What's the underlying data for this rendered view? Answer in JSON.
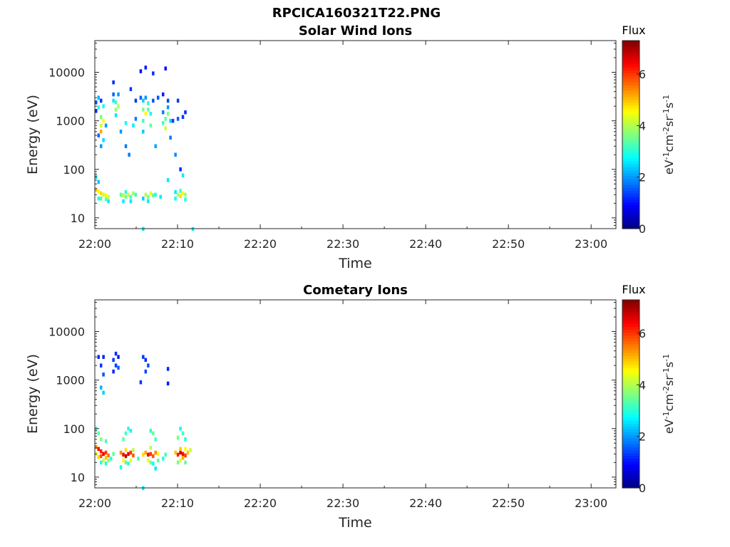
{
  "figure_title": "RPCICA160321T22.PNG",
  "chart_data": [
    {
      "type": "heatmap",
      "title": "Solar Wind Ions",
      "xlabel": "Time",
      "ylabel": "Energy (eV)",
      "x_ticks": [
        "22:00",
        "22:10",
        "22:20",
        "22:30",
        "22:40",
        "22:50",
        "23:00"
      ],
      "xlim_minutes": [
        0,
        63
      ],
      "y_ticks": [
        10,
        100,
        1000,
        10000
      ],
      "y_tick_labels": [
        "10",
        "100",
        "1000",
        "10000"
      ],
      "yscale": "log",
      "ylim": [
        6,
        45000
      ],
      "colorbar": {
        "title": "Flux",
        "label": "eV-1cm-2sr-1s-1",
        "ticks": [
          0,
          2,
          4,
          6
        ],
        "tick_labels": [
          "0",
          "2",
          "4",
          "6"
        ],
        "range": [
          0,
          7.3
        ],
        "colormap": "jet"
      },
      "cells": [
        [
          0.0,
          2400,
          1.5
        ],
        [
          0.0,
          1600,
          1.2
        ],
        [
          0.3,
          3000,
          2.2
        ],
        [
          0.3,
          1900,
          3.0
        ],
        [
          0.6,
          1200,
          3.6
        ],
        [
          0.6,
          800,
          4.2
        ],
        [
          0.6,
          600,
          5.2
        ],
        [
          0.9,
          1000,
          4.6
        ],
        [
          0.9,
          2000,
          2.8
        ],
        [
          0.9,
          400,
          2.5
        ],
        [
          0.6,
          300,
          2.0
        ],
        [
          0.3,
          500,
          1.6
        ],
        [
          1.2,
          800,
          2.0
        ],
        [
          0.6,
          2600,
          1.3
        ],
        [
          2.1,
          2600,
          2.6
        ],
        [
          2.4,
          2400,
          3.2
        ],
        [
          2.4,
          1700,
          3.8
        ],
        [
          2.7,
          2000,
          4.0
        ],
        [
          2.7,
          3500,
          2.0
        ],
        [
          2.1,
          3500,
          1.6
        ],
        [
          2.4,
          1300,
          2.6
        ],
        [
          2.1,
          6200,
          1.2
        ],
        [
          3.0,
          600,
          2.0
        ],
        [
          3.6,
          900,
          2.8
        ],
        [
          3.6,
          300,
          1.8
        ],
        [
          4.0,
          200,
          1.8
        ],
        [
          4.5,
          800,
          2.6
        ],
        [
          4.8,
          1100,
          1.8
        ],
        [
          4.8,
          2600,
          1.3
        ],
        [
          5.4,
          3000,
          1.6
        ],
        [
          5.7,
          2600,
          2.4
        ],
        [
          5.7,
          1700,
          3.6
        ],
        [
          6.0,
          1400,
          4.6
        ],
        [
          6.3,
          1700,
          3.4
        ],
        [
          6.0,
          3000,
          2.0
        ],
        [
          6.3,
          2300,
          3.0
        ],
        [
          5.7,
          1000,
          3.2
        ],
        [
          5.7,
          600,
          2.4
        ],
        [
          6.6,
          800,
          3.4
        ],
        [
          6.6,
          1400,
          2.8
        ],
        [
          6.9,
          2600,
          1.5
        ],
        [
          5.4,
          10500,
          1.0
        ],
        [
          6.0,
          12500,
          1.1
        ],
        [
          6.9,
          9500,
          1.2
        ],
        [
          4.2,
          4500,
          1.3
        ],
        [
          7.5,
          3000,
          1.5
        ],
        [
          8.1,
          900,
          3.2
        ],
        [
          8.4,
          700,
          4.2
        ],
        [
          8.7,
          1400,
          3.6
        ],
        [
          8.7,
          1900,
          2.0
        ],
        [
          8.4,
          1100,
          3.4
        ],
        [
          8.1,
          1500,
          1.8
        ],
        [
          9.0,
          1000,
          2.4
        ],
        [
          8.7,
          2600,
          1.4
        ],
        [
          9.3,
          1000,
          1.4
        ],
        [
          9.9,
          1100,
          1.6
        ],
        [
          9.9,
          2600,
          1.3
        ],
        [
          8.4,
          12000,
          1.0
        ],
        [
          8.1,
          3500,
          1.1
        ],
        [
          9.0,
          450,
          1.8
        ],
        [
          9.6,
          200,
          1.9
        ],
        [
          7.2,
          300,
          2.1
        ],
        [
          8.7,
          60,
          2.6
        ],
        [
          10.5,
          1200,
          1.3
        ],
        [
          10.8,
          1500,
          1.2
        ],
        [
          10.5,
          75,
          2.6
        ],
        [
          10.2,
          100,
          1.2
        ],
        [
          0.0,
          70,
          2.6
        ],
        [
          0.3,
          55,
          2.3
        ],
        [
          0.0,
          38,
          5.0
        ],
        [
          0.3,
          35,
          4.6
        ],
        [
          0.6,
          32,
          4.8
        ],
        [
          0.9,
          30,
          4.2
        ],
        [
          1.2,
          29,
          4.6
        ],
        [
          1.5,
          27,
          4.2
        ],
        [
          0.6,
          25,
          3.2
        ],
        [
          1.2,
          24,
          3.4
        ],
        [
          0.3,
          25,
          3.0
        ],
        [
          1.5,
          22,
          2.6
        ],
        [
          3.0,
          30,
          3.4
        ],
        [
          3.3,
          29,
          4.0
        ],
        [
          3.6,
          27,
          3.6
        ],
        [
          3.9,
          30,
          4.2
        ],
        [
          4.2,
          27,
          3.2
        ],
        [
          4.5,
          32,
          3.8
        ],
        [
          3.3,
          22,
          2.6
        ],
        [
          4.2,
          22,
          2.6
        ],
        [
          3.6,
          34,
          3.0
        ],
        [
          4.8,
          30,
          3.2
        ],
        [
          6.0,
          30,
          4.0
        ],
        [
          6.3,
          27,
          3.6
        ],
        [
          6.6,
          32,
          4.4
        ],
        [
          6.9,
          29,
          3.4
        ],
        [
          7.2,
          30,
          3.0
        ],
        [
          6.3,
          22,
          2.6
        ],
        [
          5.7,
          25,
          2.4
        ],
        [
          7.8,
          27,
          2.6
        ],
        [
          9.9,
          30,
          4.0
        ],
        [
          10.2,
          28,
          4.8
        ],
        [
          10.5,
          32,
          4.4
        ],
        [
          10.8,
          30,
          3.8
        ],
        [
          10.2,
          36,
          3.2
        ],
        [
          9.6,
          34,
          2.6
        ],
        [
          10.8,
          24,
          3.0
        ],
        [
          9.6,
          25,
          2.8
        ],
        [
          5.7,
          5.9,
          2.6
        ],
        [
          11.7,
          5.9,
          2.6
        ]
      ]
    },
    {
      "type": "heatmap",
      "title": "Cometary Ions",
      "xlabel": "Time",
      "ylabel": "Energy (eV)",
      "x_ticks": [
        "22:00",
        "22:10",
        "22:20",
        "22:30",
        "22:40",
        "22:50",
        "23:00"
      ],
      "xlim_minutes": [
        0,
        63
      ],
      "y_ticks": [
        10,
        100,
        1000,
        10000
      ],
      "y_tick_labels": [
        "10",
        "100",
        "1000",
        "10000"
      ],
      "yscale": "log",
      "ylim": [
        6,
        45000
      ],
      "colorbar": {
        "title": "Flux",
        "label": "eV-1cm-2sr-1s-1",
        "ticks": [
          0,
          2,
          4,
          6
        ],
        "tick_labels": [
          "0",
          "2",
          "4",
          "6"
        ],
        "range": [
          0,
          7.3
        ],
        "colormap": "jet"
      },
      "cells": [
        [
          0.3,
          3000,
          1.2
        ],
        [
          0.9,
          3000,
          1.2
        ],
        [
          0.6,
          2000,
          1.3
        ],
        [
          0.9,
          1300,
          1.5
        ],
        [
          0.6,
          700,
          2.2
        ],
        [
          0.9,
          550,
          2.4
        ],
        [
          2.4,
          3500,
          1.2
        ],
        [
          2.7,
          3000,
          1.1
        ],
        [
          2.1,
          2600,
          1.3
        ],
        [
          2.4,
          2000,
          1.4
        ],
        [
          2.7,
          1800,
          1.6
        ],
        [
          2.1,
          1500,
          1.2
        ],
        [
          5.7,
          3000,
          1.3
        ],
        [
          6.0,
          2600,
          1.2
        ],
        [
          6.3,
          2000,
          1.5
        ],
        [
          6.0,
          1500,
          1.4
        ],
        [
          5.4,
          900,
          1.3
        ],
        [
          8.7,
          1700,
          1.2
        ],
        [
          8.7,
          850,
          1.1
        ],
        [
          0.0,
          100,
          3.0
        ],
        [
          0.3,
          80,
          3.4
        ],
        [
          0.6,
          60,
          3.6
        ],
        [
          3.6,
          80,
          3.2
        ],
        [
          3.9,
          100,
          3.0
        ],
        [
          4.2,
          90,
          2.8
        ],
        [
          3.3,
          60,
          3.4
        ],
        [
          6.9,
          80,
          3.4
        ],
        [
          7.2,
          60,
          3.2
        ],
        [
          6.6,
          90,
          3.0
        ],
        [
          10.2,
          100,
          2.8
        ],
        [
          10.5,
          80,
          3.2
        ],
        [
          9.9,
          65,
          3.6
        ],
        [
          10.8,
          60,
          3.0
        ],
        [
          1.2,
          55,
          3.2
        ],
        [
          0.0,
          42,
          5.4
        ],
        [
          0.3,
          38,
          6.4
        ],
        [
          0.6,
          34,
          6.2
        ],
        [
          0.9,
          30,
          6.6
        ],
        [
          1.2,
          32,
          6.0
        ],
        [
          1.5,
          28,
          5.6
        ],
        [
          0.6,
          27,
          5.8
        ],
        [
          1.2,
          25,
          5.0
        ],
        [
          0.3,
          26,
          4.8
        ],
        [
          1.5,
          22,
          3.8
        ],
        [
          0.9,
          22,
          4.2
        ],
        [
          0.6,
          20,
          3.0
        ],
        [
          1.2,
          19,
          3.0
        ],
        [
          0.0,
          30,
          4.4
        ],
        [
          3.0,
          32,
          5.4
        ],
        [
          3.3,
          29,
          6.4
        ],
        [
          3.6,
          27,
          6.8
        ],
        [
          3.9,
          30,
          6.6
        ],
        [
          4.2,
          32,
          6.0
        ],
        [
          4.5,
          28,
          5.8
        ],
        [
          3.3,
          22,
          4.6
        ],
        [
          4.2,
          22,
          4.4
        ],
        [
          3.6,
          20,
          3.4
        ],
        [
          3.9,
          19,
          3.0
        ],
        [
          3.6,
          36,
          4.8
        ],
        [
          4.5,
          36,
          4.0
        ],
        [
          6.0,
          32,
          5.2
        ],
        [
          6.3,
          29,
          6.4
        ],
        [
          6.6,
          30,
          6.0
        ],
        [
          6.9,
          27,
          5.8
        ],
        [
          7.2,
          32,
          5.4
        ],
        [
          6.3,
          22,
          4.4
        ],
        [
          6.6,
          20,
          3.6
        ],
        [
          7.5,
          30,
          4.6
        ],
        [
          5.7,
          29,
          4.8
        ],
        [
          7.5,
          22,
          3.4
        ],
        [
          6.9,
          19,
          2.8
        ],
        [
          6.6,
          40,
          4.0
        ],
        [
          9.6,
          32,
          5.0
        ],
        [
          9.9,
          29,
          6.2
        ],
        [
          10.2,
          32,
          6.8
        ],
        [
          10.5,
          30,
          6.4
        ],
        [
          10.8,
          28,
          6.0
        ],
        [
          11.1,
          32,
          5.0
        ],
        [
          10.2,
          22,
          4.4
        ],
        [
          10.5,
          25,
          5.2
        ],
        [
          9.9,
          20,
          3.6
        ],
        [
          10.8,
          20,
          3.4
        ],
        [
          10.2,
          38,
          5.0
        ],
        [
          10.8,
          38,
          4.6
        ],
        [
          11.4,
          36,
          4.2
        ],
        [
          1.8,
          24,
          3.0
        ],
        [
          5.1,
          24,
          3.2
        ],
        [
          8.1,
          24,
          3.0
        ],
        [
          8.4,
          29,
          3.2
        ],
        [
          2.1,
          30,
          3.4
        ],
        [
          3.0,
          16,
          2.8
        ],
        [
          7.2,
          15,
          2.6
        ],
        [
          5.7,
          5.9,
          2.6
        ]
      ]
    }
  ]
}
